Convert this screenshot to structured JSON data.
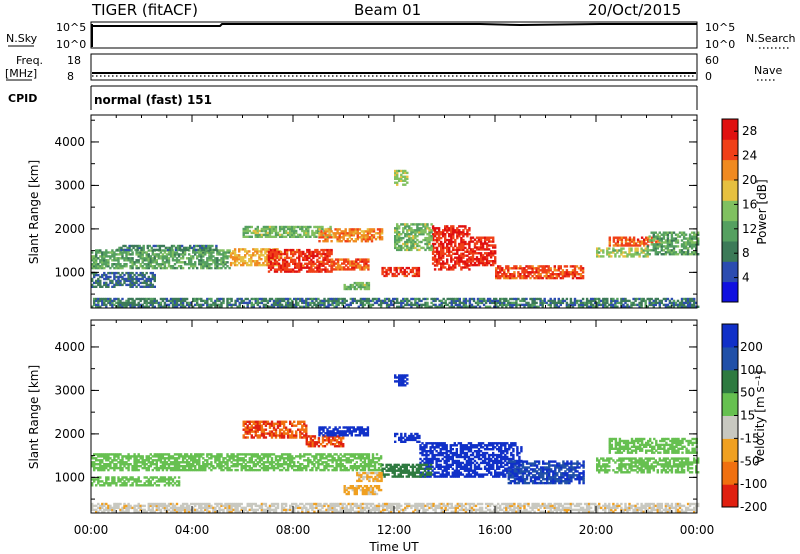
{
  "header": {
    "title": "TIGER (fitACF)",
    "beam": "Beam 01",
    "date": "20/Oct/2015"
  },
  "status_panels": {
    "nsky": {
      "label": "N.Sky",
      "ticks": [
        "10^5",
        "10^0"
      ],
      "right_ticks": [
        "10^5",
        "10^0"
      ],
      "right_label": "N.Search"
    },
    "freq": {
      "label_line1": "Freq.",
      "label_line2": "[MHz]",
      "ticks": [
        "18",
        "8"
      ],
      "right_ticks": [
        "60",
        "0"
      ],
      "right_label": "Nave"
    },
    "cpid": {
      "label": "CPID",
      "value": "normal (fast) 151"
    }
  },
  "x_axis": {
    "label": "Time UT",
    "ticks": [
      "00:00",
      "04:00",
      "08:00",
      "12:00",
      "16:00",
      "20:00",
      "00:00"
    ]
  },
  "chart_data": [
    {
      "type": "heatmap",
      "title": "",
      "xlabel": "Time UT",
      "ylabel": "Slant Range [km]",
      "x_ticks": [
        "00:00",
        "04:00",
        "08:00",
        "12:00",
        "16:00",
        "20:00",
        "00:00"
      ],
      "xlim_hours": [
        0,
        24
      ],
      "ylim": [
        180,
        4620
      ],
      "y_ticks": [
        1000,
        2000,
        3000,
        4000
      ],
      "colorbar": {
        "label": "Power [dB]",
        "ticks": [
          4,
          8,
          12,
          16,
          20,
          24,
          28
        ],
        "range": [
          0,
          30
        ],
        "colors": [
          "#1010e0",
          "#2c4cb0",
          "#3c7a58",
          "#55a060",
          "#80c060",
          "#e6c040",
          "#f08a20",
          "#f04018",
          "#e01010"
        ]
      },
      "regions": [
        {
          "t0": 0.0,
          "t1": 5.5,
          "r0": 1080,
          "r1": 1520,
          "v": 12
        },
        {
          "t0": 1.0,
          "t1": 5.0,
          "r0": 1500,
          "r1": 1620,
          "v": 9
        },
        {
          "t0": 5.5,
          "t1": 7.5,
          "r0": 1150,
          "r1": 1550,
          "v": 20
        },
        {
          "t0": 7.0,
          "t1": 9.5,
          "r0": 1000,
          "r1": 1500,
          "v": 26
        },
        {
          "t0": 9.5,
          "t1": 11.0,
          "r0": 1050,
          "r1": 1300,
          "v": 24
        },
        {
          "t0": 6.0,
          "t1": 9.5,
          "r0": 1800,
          "r1": 2050,
          "v": 14
        },
        {
          "t0": 9.0,
          "t1": 11.5,
          "r0": 1700,
          "r1": 2000,
          "v": 22
        },
        {
          "t0": 11.5,
          "t1": 13.0,
          "r0": 900,
          "r1": 1100,
          "v": 26
        },
        {
          "t0": 13.5,
          "t1": 15.0,
          "r0": 1050,
          "r1": 2050,
          "v": 27
        },
        {
          "t0": 15.0,
          "t1": 16.0,
          "r0": 1150,
          "r1": 1800,
          "v": 27
        },
        {
          "t0": 16.0,
          "t1": 19.5,
          "r0": 850,
          "r1": 1150,
          "v": 25
        },
        {
          "t0": 12.0,
          "t1": 13.5,
          "r0": 1500,
          "r1": 2100,
          "v": 14
        },
        {
          "t0": 10.0,
          "t1": 11.0,
          "r0": 600,
          "r1": 750,
          "v": 14
        },
        {
          "t0": 20.5,
          "t1": 22.5,
          "r0": 1600,
          "r1": 1800,
          "v": 24
        },
        {
          "t0": 22.0,
          "t1": 24.0,
          "r0": 1400,
          "r1": 1900,
          "v": 12
        },
        {
          "t0": 20.0,
          "t1": 22.0,
          "r0": 1350,
          "r1": 1550,
          "v": 16
        },
        {
          "t0": 0.0,
          "t1": 2.5,
          "r0": 650,
          "r1": 1000,
          "v": 7
        },
        {
          "t0": 12.0,
          "t1": 12.5,
          "r0": 3000,
          "r1": 3350,
          "v": 16
        },
        {
          "t0": 0.0,
          "t1": 24.0,
          "r0": 190,
          "r1": 380,
          "v": 8
        }
      ]
    },
    {
      "type": "heatmap",
      "title": "",
      "xlabel": "Time UT",
      "ylabel": "Slant Range [km]",
      "x_ticks": [
        "00:00",
        "04:00",
        "08:00",
        "12:00",
        "16:00",
        "20:00",
        "00:00"
      ],
      "xlim_hours": [
        0,
        24
      ],
      "ylim": [
        180,
        4620
      ],
      "y_ticks": [
        1000,
        2000,
        3000,
        4000
      ],
      "colorbar": {
        "label": "Velocity [m s⁻¹]",
        "ticks": [
          200,
          100,
          50,
          15,
          -15,
          -50,
          -100,
          -200
        ],
        "colors": [
          "#1030c8",
          "#2050a8",
          "#2e7a40",
          "#66c050",
          "#c8c8c0",
          "#f0a020",
          "#f07010",
          "#e02010"
        ]
      },
      "regions": [
        {
          "t0": 0.0,
          "t1": 11.5,
          "r0": 1150,
          "r1": 1550,
          "v": 0
        },
        {
          "t0": 6.0,
          "t1": 8.5,
          "r0": 1900,
          "r1": 2300,
          "v": -200
        },
        {
          "t0": 8.5,
          "t1": 10.0,
          "r0": 1700,
          "r1": 1950,
          "v": -200
        },
        {
          "t0": 9.0,
          "t1": 11.0,
          "r0": 1950,
          "r1": 2150,
          "v": 200
        },
        {
          "t0": 13.0,
          "t1": 17.0,
          "r0": 1000,
          "r1": 1800,
          "v": 200
        },
        {
          "t0": 16.5,
          "t1": 19.5,
          "r0": 850,
          "r1": 1350,
          "v": 100
        },
        {
          "t0": 11.5,
          "t1": 13.5,
          "r0": 1000,
          "r1": 1300,
          "v": 30
        },
        {
          "t0": 10.5,
          "t1": 11.5,
          "r0": 900,
          "r1": 1100,
          "v": -60
        },
        {
          "t0": 10.0,
          "t1": 11.5,
          "r0": 600,
          "r1": 800,
          "v": -60
        },
        {
          "t0": 12.0,
          "t1": 13.0,
          "r0": 1800,
          "r1": 2000,
          "v": 200
        },
        {
          "t0": 20.5,
          "t1": 24.0,
          "r0": 1550,
          "r1": 1900,
          "v": 0
        },
        {
          "t0": 20.0,
          "t1": 24.0,
          "r0": 1100,
          "r1": 1450,
          "v": 0
        },
        {
          "t0": 0.0,
          "t1": 3.5,
          "r0": 800,
          "r1": 1000,
          "v": 0
        },
        {
          "t0": 12.0,
          "t1": 12.5,
          "r0": 3100,
          "r1": 3350,
          "v": 200
        },
        {
          "t0": 0.0,
          "t1": 24.0,
          "r0": 190,
          "r1": 380,
          "v": -40
        }
      ]
    }
  ]
}
